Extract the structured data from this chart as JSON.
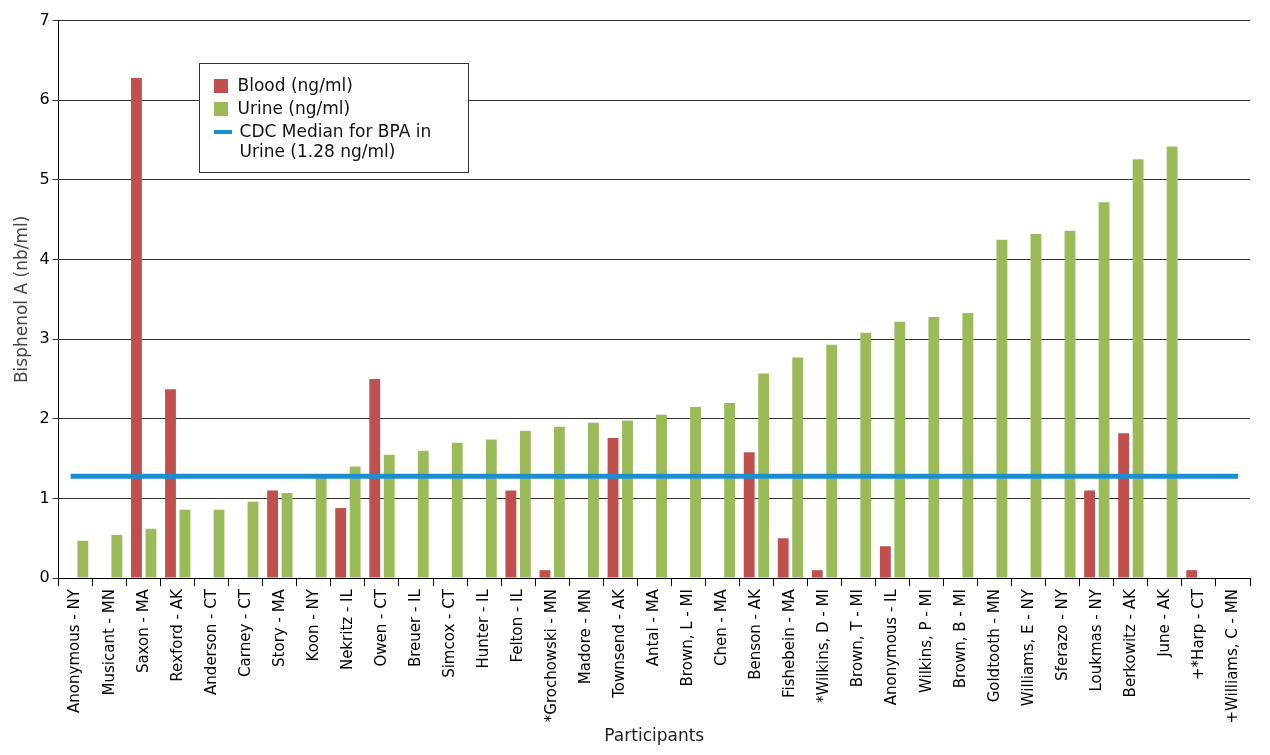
{
  "chart_data": {
    "type": "bar",
    "xlabel": "Participants",
    "ylabel": "Bisphenol A (nb/ml)",
    "categories": [
      "Anonymous - NY",
      "Musicant - MN",
      "Saxon - MA",
      "Rexford - AK",
      "Anderson - CT",
      "Carney - CT",
      "Story - MA",
      "Koon - NY",
      "Nekritz - IL",
      "Owen - CT",
      "Breuer - IL",
      "Simcox - CT",
      "Hunter - IL",
      "Felton - IL",
      "*Grochowski - MN",
      "Madore - MN",
      "Townsend - AK",
      "Antal - MA",
      "Brown, L - MI",
      "Chen - MA",
      "Benson - AK",
      "Fishebein - MA",
      "*Wilkins, D - MI",
      "Brown, T - MI",
      "Anonymous - IL",
      "Wilkins, P - MI",
      "Brown, B - MI",
      "Goldtooth - MN",
      "Williams, E - NY",
      "Sferazo - NY",
      "Loukmas - NY",
      "Berkowitz - AK",
      "June - AK",
      "+*Harp - CT",
      "+Williams, C - MN"
    ],
    "series": [
      {
        "name": "Blood (ng/ml)",
        "color": "#c0504d",
        "values": [
          null,
          null,
          6.28,
          2.37,
          null,
          null,
          1.1,
          null,
          0.88,
          2.5,
          null,
          null,
          null,
          1.1,
          0.1,
          null,
          1.76,
          null,
          null,
          null,
          1.58,
          0.5,
          0.1,
          null,
          0.4,
          null,
          null,
          null,
          null,
          null,
          1.1,
          1.82,
          null,
          0.1,
          null
        ]
      },
      {
        "name": "Urine (ng/ml)",
        "color": "#9bbb59",
        "values": [
          0.47,
          0.54,
          0.62,
          0.86,
          0.86,
          0.96,
          1.07,
          1.28,
          1.4,
          1.55,
          1.6,
          1.7,
          1.74,
          1.85,
          1.9,
          1.95,
          1.98,
          2.05,
          2.15,
          2.2,
          2.57,
          2.77,
          2.93,
          3.08,
          3.22,
          3.28,
          3.33,
          4.25,
          4.32,
          4.36,
          4.72,
          5.26,
          5.42,
          null,
          null
        ]
      }
    ],
    "ref_lines": [
      {
        "axis": "y",
        "value": 1.28,
        "label": "CDC Median for BPA in Urine (1.28 ng/ml)",
        "color": "#1b8ed0",
        "line_style": "solid"
      }
    ],
    "ylim": [
      0,
      7
    ],
    "yticks": [
      0,
      1,
      2,
      3,
      4,
      5,
      6,
      7
    ],
    "grid": "y",
    "legend": "top left"
  }
}
